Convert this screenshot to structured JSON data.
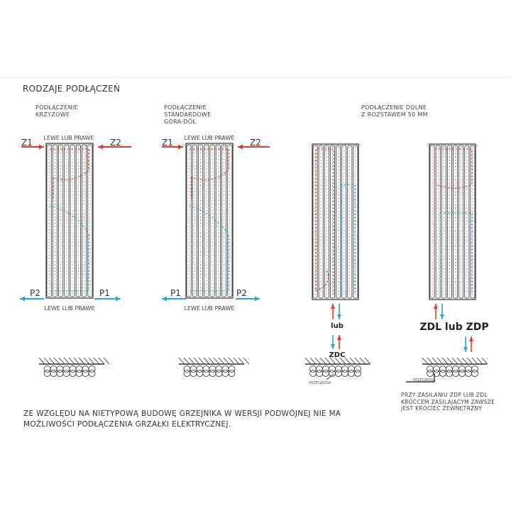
{
  "title": "RODZAJE PODŁĄCZEŃ",
  "colors": {
    "supply": "#e2392c",
    "return": "#2ba4dc",
    "line": "#333333"
  },
  "sections": [
    {
      "heading": [
        "PODŁĄCZENIE",
        "KRZYŻOWE"
      ],
      "top_label": "LEWE LUB PRAWE",
      "bottom_label": "LEWE LUB PRAWE",
      "top_left": "Z1",
      "top_right": "Z2",
      "bottom_left": "P2",
      "bottom_right": "P1"
    },
    {
      "heading": [
        "PODŁĄCZENIE",
        "STANDARDOWE",
        "GÓRA-DÓŁ"
      ],
      "top_label": "LEWE LUB PRAWE",
      "bottom_label": "LEWE LUB PRAWE",
      "top_left": "Z1",
      "top_right": "Z2",
      "bottom_left": "P1",
      "bottom_right": "P2"
    },
    {
      "heading": [
        "PODŁĄCZENIE DOLNE",
        "Z ROZSTAWEM 50 MM"
      ],
      "or_label": "lub",
      "code": "ZDC",
      "partition": "PRZEGRODA"
    },
    {
      "or_label": "ZDL lub ZDP",
      "partition": "PRZEGRODA",
      "note": [
        "PRZY ZASILANIU ZDP LUB ZDL",
        "KRÓĆCEM ZASILAJĄCYM ZAWSZE",
        "JEST KRÓCIEC ZEWNĘTRZNY"
      ]
    }
  ],
  "footer": [
    "ZE WZGLĘDU NA NIETYPOWĄ BUDOWĘ GRZEJNIKA W WERSJI PODWÓJNEJ NIE MA",
    "MOŻLIWOŚCI PODŁĄCZENIA GRZAŁKI ELEKTRYCZNEJ."
  ]
}
